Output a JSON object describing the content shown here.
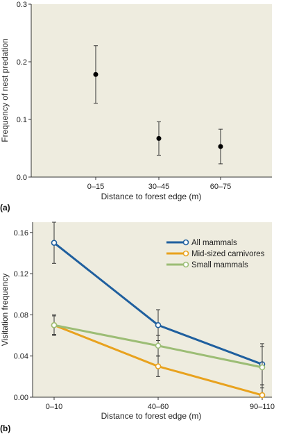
{
  "chart_data": [
    {
      "type": "scatter",
      "panel_label": "(a)",
      "xlabel": "Distance to forest edge (m)",
      "ylabel": "Frequency of nest predation",
      "categories": [
        "0–15",
        "30–45",
        "60–75"
      ],
      "ylim": [
        0,
        0.3
      ],
      "yticks": [
        "0.0",
        "0.1",
        "0.2",
        "0.3"
      ],
      "series": [
        {
          "values": [
            0.178,
            0.067,
            0.053
          ],
          "error_low": [
            0.128,
            0.038,
            0.023
          ],
          "error_high": [
            0.228,
            0.096,
            0.083
          ]
        }
      ],
      "background": "#eeecdf"
    },
    {
      "type": "line",
      "panel_label": "(b)",
      "xlabel": "Distance to forest edge (m)",
      "ylabel": "Visitation frequency",
      "categories": [
        "0–10",
        "40–60",
        "90–110"
      ],
      "ylim": [
        0,
        0.17
      ],
      "yticks": [
        "0.00",
        "0.04",
        "0.08",
        "0.12",
        "0.16"
      ],
      "legend_position": "top-right",
      "series": [
        {
          "name": "All mammals",
          "color": "#1f5f9e",
          "values": [
            0.15,
            0.07,
            0.032
          ],
          "error_low": [
            0.13,
            0.055,
            0.012
          ],
          "error_high": [
            0.17,
            0.085,
            0.052
          ]
        },
        {
          "name": "Mid-sized carnivores",
          "color": "#e8a21e",
          "values": [
            0.07,
            0.03,
            0.002
          ],
          "error_low": [
            0.061,
            0.02,
            0.0
          ],
          "error_high": [
            0.079,
            0.04,
            0.012
          ]
        },
        {
          "name": "Small mammals",
          "color": "#9cbd75",
          "values": [
            0.07,
            0.05,
            0.029
          ],
          "error_low": [
            0.06,
            0.04,
            0.009
          ],
          "error_high": [
            0.08,
            0.06,
            0.049
          ]
        }
      ],
      "background": "#eeecdf"
    }
  ]
}
